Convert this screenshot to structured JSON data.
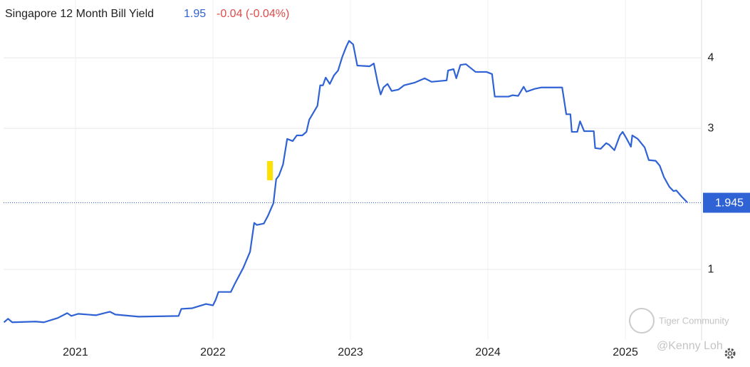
{
  "chart_data": {
    "type": "line",
    "title": "Singapore 12 Month Bill Yield",
    "last_value": "1.95",
    "change": "-0.04 (-0.04%)",
    "price_line": {
      "value": 1.945,
      "label": "1.945"
    },
    "watermark": [
      "Tiger Community",
      "@Kenny Loh"
    ],
    "xlim": [
      2020.477,
      2025.554
    ],
    "xticks": [
      2021,
      2022,
      2023,
      2024,
      2025
    ],
    "ylim": [
      0,
      4.82
    ],
    "yticks": [
      1,
      3,
      4
    ],
    "grid": true,
    "series": [
      {
        "name": "Singapore 12 Month Bill Yield",
        "color": "#2f62d4",
        "x": [
          2020.48,
          2020.51,
          2020.54,
          2020.71,
          2020.77,
          2020.87,
          2020.94,
          2020.97,
          2021.02,
          2021.15,
          2021.25,
          2021.29,
          2021.46,
          2021.75,
          2021.77,
          2021.85,
          2021.95,
          2022.0,
          2022.02,
          2022.04,
          2022.13,
          2022.16,
          2022.22,
          2022.27,
          2022.3,
          2022.32,
          2022.37,
          2022.4,
          2022.44,
          2022.46,
          2022.48,
          2022.51,
          2022.54,
          2022.58,
          2022.61,
          2022.65,
          2022.68,
          2022.7,
          2022.76,
          2022.78,
          2022.8,
          2022.82,
          2022.85,
          2022.88,
          2022.91,
          2022.94,
          2022.97,
          2022.99,
          2023.02,
          2023.05,
          2023.14,
          2023.17,
          2023.2,
          2023.22,
          2023.24,
          2023.27,
          2023.3,
          2023.35,
          2023.39,
          2023.47,
          2023.54,
          2023.59,
          2023.7,
          2023.71,
          2023.75,
          2023.77,
          2023.8,
          2023.84,
          2023.91,
          2023.99,
          2024.03,
          2024.05,
          2024.15,
          2024.18,
          2024.22,
          2024.26,
          2024.28,
          2024.34,
          2024.39,
          2024.54,
          2024.57,
          2024.6,
          2024.61,
          2024.65,
          2024.67,
          2024.7,
          2024.77,
          2024.78,
          2024.82,
          2024.86,
          2024.88,
          2024.92,
          2024.96,
          2024.98,
          2025.01,
          2025.04,
          2025.05,
          2025.09,
          2025.14,
          2025.17,
          2025.22,
          2025.25,
          2025.28,
          2025.32,
          2025.35,
          2025.37,
          2025.41,
          2025.45
        ],
        "values": [
          0.25,
          0.3,
          0.25,
          0.26,
          0.25,
          0.31,
          0.38,
          0.34,
          0.37,
          0.35,
          0.4,
          0.36,
          0.33,
          0.34,
          0.44,
          0.45,
          0.51,
          0.49,
          0.57,
          0.68,
          0.68,
          0.8,
          1.02,
          1.25,
          1.66,
          1.63,
          1.65,
          1.76,
          1.94,
          2.28,
          2.33,
          2.49,
          2.85,
          2.82,
          2.9,
          2.9,
          2.95,
          3.12,
          3.32,
          3.61,
          3.61,
          3.72,
          3.63,
          3.75,
          3.82,
          4.01,
          4.16,
          4.24,
          4.19,
          3.89,
          3.88,
          3.92,
          3.63,
          3.48,
          3.58,
          3.63,
          3.53,
          3.55,
          3.61,
          3.65,
          3.71,
          3.66,
          3.68,
          3.82,
          3.84,
          3.71,
          3.9,
          3.91,
          3.8,
          3.8,
          3.77,
          3.45,
          3.45,
          3.47,
          3.46,
          3.59,
          3.52,
          3.56,
          3.58,
          3.58,
          3.2,
          3.2,
          2.95,
          2.95,
          3.1,
          2.96,
          2.96,
          2.72,
          2.71,
          2.79,
          2.77,
          2.69,
          2.9,
          2.95,
          2.85,
          2.74,
          2.9,
          2.85,
          2.73,
          2.55,
          2.54,
          2.47,
          2.31,
          2.17,
          2.11,
          2.12,
          2.03,
          1.95
        ]
      }
    ]
  }
}
